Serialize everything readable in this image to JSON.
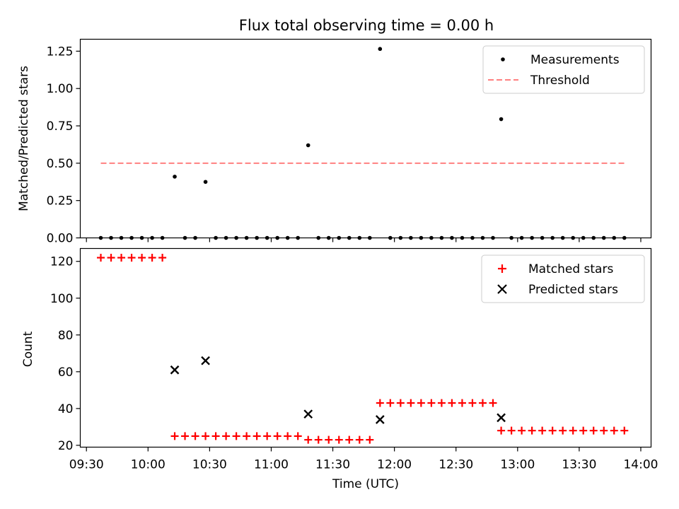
{
  "title": "Flux total observing time = 0.00 h",
  "colors": {
    "measurement": "#000000",
    "threshold": "#ff8080",
    "matched": "#ff0000",
    "predicted": "#000000",
    "legend_border": "#cccccc"
  },
  "chart_data": [
    {
      "type": "scatter",
      "panel": "top",
      "title": "Flux total observing time = 0.00 h",
      "xlabel": "",
      "ylabel": "Matched/Predicted stars",
      "xlim": [
        "09:27",
        "14:05"
      ],
      "ylim": [
        0,
        1.33
      ],
      "yticks": [
        0.0,
        0.25,
        0.5,
        0.75,
        1.0,
        1.25
      ],
      "ytick_labels": [
        "0.00",
        "0.25",
        "0.50",
        "0.75",
        "1.00",
        "1.25"
      ],
      "legend_position": "top-right",
      "series": [
        {
          "name": "Measurements",
          "kind": "scatter",
          "points": [
            [
              "09:37",
              0
            ],
            [
              "09:42",
              0
            ],
            [
              "09:47",
              0
            ],
            [
              "09:52",
              0
            ],
            [
              "09:57",
              0
            ],
            [
              "10:02",
              0
            ],
            [
              "10:07",
              0
            ],
            [
              "10:13",
              0.41
            ],
            [
              "10:18",
              0
            ],
            [
              "10:23",
              0
            ],
            [
              "10:28",
              0.375
            ],
            [
              "10:33",
              0
            ],
            [
              "10:38",
              0
            ],
            [
              "10:43",
              0
            ],
            [
              "10:48",
              0
            ],
            [
              "10:53",
              0
            ],
            [
              "10:58",
              0
            ],
            [
              "11:03",
              0
            ],
            [
              "11:08",
              0
            ],
            [
              "11:13",
              0
            ],
            [
              "11:18",
              0.62
            ],
            [
              "11:23",
              0
            ],
            [
              "11:28",
              0
            ],
            [
              "11:33",
              0
            ],
            [
              "11:38",
              0
            ],
            [
              "11:43",
              0
            ],
            [
              "11:48",
              0
            ],
            [
              "11:53",
              1.265
            ],
            [
              "11:58",
              0
            ],
            [
              "12:03",
              0
            ],
            [
              "12:08",
              0
            ],
            [
              "12:13",
              0
            ],
            [
              "12:18",
              0
            ],
            [
              "12:23",
              0
            ],
            [
              "12:28",
              0
            ],
            [
              "12:33",
              0
            ],
            [
              "12:38",
              0
            ],
            [
              "12:43",
              0
            ],
            [
              "12:48",
              0
            ],
            [
              "12:52",
              0.795
            ],
            [
              "12:57",
              0
            ],
            [
              "13:02",
              0
            ],
            [
              "13:07",
              0
            ],
            [
              "13:12",
              0
            ],
            [
              "13:17",
              0
            ],
            [
              "13:22",
              0
            ],
            [
              "13:27",
              0
            ],
            [
              "13:32",
              0
            ],
            [
              "13:37",
              0
            ],
            [
              "13:42",
              0
            ],
            [
              "13:47",
              0
            ],
            [
              "13:52",
              0
            ]
          ]
        },
        {
          "name": "Threshold",
          "kind": "dashed-line",
          "points": [
            [
              "09:37",
              0.5
            ],
            [
              "13:53",
              0.5
            ]
          ]
        }
      ]
    },
    {
      "type": "scatter",
      "panel": "bottom",
      "xlabel": "Time (UTC)",
      "ylabel": "Count",
      "xlim": [
        "09:27",
        "14:05"
      ],
      "ylim": [
        19,
        127
      ],
      "yticks": [
        20,
        40,
        60,
        80,
        100,
        120
      ],
      "ytick_labels": [
        "20",
        "40",
        "60",
        "80",
        "100",
        "120"
      ],
      "xticks": [
        "09:30",
        "10:00",
        "10:30",
        "11:00",
        "11:30",
        "12:00",
        "12:30",
        "13:00",
        "13:30",
        "14:00"
      ],
      "xtick_labels": [
        "09:30",
        "10:00",
        "10:30",
        "11:00",
        "11:30",
        "12:00",
        "12:30",
        "13:00",
        "13:30",
        "14:00"
      ],
      "legend_position": "top-right",
      "series": [
        {
          "name": "Matched stars",
          "marker": "plus",
          "points": [
            [
              "09:37",
              122
            ],
            [
              "09:42",
              122
            ],
            [
              "09:47",
              122
            ],
            [
              "09:52",
              122
            ],
            [
              "09:57",
              122
            ],
            [
              "10:02",
              122
            ],
            [
              "10:07",
              122
            ],
            [
              "10:13",
              25
            ],
            [
              "10:18",
              25
            ],
            [
              "10:23",
              25
            ],
            [
              "10:28",
              25
            ],
            [
              "10:33",
              25
            ],
            [
              "10:38",
              25
            ],
            [
              "10:43",
              25
            ],
            [
              "10:48",
              25
            ],
            [
              "10:53",
              25
            ],
            [
              "10:58",
              25
            ],
            [
              "11:03",
              25
            ],
            [
              "11:08",
              25
            ],
            [
              "11:13",
              25
            ],
            [
              "11:18",
              23
            ],
            [
              "11:23",
              23
            ],
            [
              "11:28",
              23
            ],
            [
              "11:33",
              23
            ],
            [
              "11:38",
              23
            ],
            [
              "11:43",
              23
            ],
            [
              "11:48",
              23
            ],
            [
              "11:53",
              43
            ],
            [
              "11:58",
              43
            ],
            [
              "12:03",
              43
            ],
            [
              "12:08",
              43
            ],
            [
              "12:13",
              43
            ],
            [
              "12:18",
              43
            ],
            [
              "12:23",
              43
            ],
            [
              "12:28",
              43
            ],
            [
              "12:33",
              43
            ],
            [
              "12:38",
              43
            ],
            [
              "12:43",
              43
            ],
            [
              "12:48",
              43
            ],
            [
              "12:52",
              28
            ],
            [
              "12:57",
              28
            ],
            [
              "13:02",
              28
            ],
            [
              "13:07",
              28
            ],
            [
              "13:12",
              28
            ],
            [
              "13:17",
              28
            ],
            [
              "13:22",
              28
            ],
            [
              "13:27",
              28
            ],
            [
              "13:32",
              28
            ],
            [
              "13:37",
              28
            ],
            [
              "13:42",
              28
            ],
            [
              "13:47",
              28
            ],
            [
              "13:52",
              28
            ]
          ]
        },
        {
          "name": "Predicted stars",
          "marker": "x",
          "points": [
            [
              "10:13",
              61
            ],
            [
              "10:28",
              66
            ],
            [
              "11:18",
              37
            ],
            [
              "11:53",
              34
            ],
            [
              "12:52",
              35
            ]
          ]
        }
      ]
    }
  ]
}
